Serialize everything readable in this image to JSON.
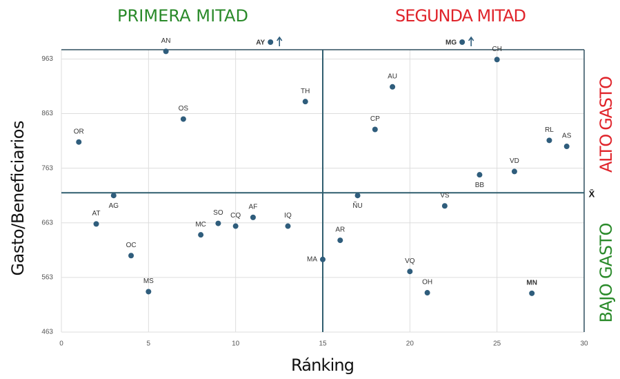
{
  "chart_data": {
    "type": "scatter",
    "xlabel": "Ránking",
    "ylabel": "Gasto/Beneficiarios",
    "xlim": [
      0,
      30
    ],
    "xticks": [
      0,
      5,
      10,
      15,
      20,
      25,
      30
    ],
    "ylim": [
      463,
      980
    ],
    "yticks": [
      463,
      563,
      663,
      763,
      863,
      963
    ],
    "grid": true,
    "color": "#2f5d7c",
    "highlight_color": "#b3282d",
    "labels": [
      "OR",
      "AN",
      "OS",
      "TH",
      "AU",
      "CP",
      "CH",
      "RL",
      "AS",
      "VD",
      "BB",
      "ÑU",
      "AG",
      "AT",
      "VS",
      "MC",
      "SO",
      "CQ",
      "AF",
      "IQ",
      "AR",
      "OC",
      "MA",
      "VQ",
      "MS",
      "OH",
      "MN"
    ],
    "x": [
      1,
      6,
      7,
      14,
      19,
      18,
      25,
      28,
      29,
      26,
      24,
      17,
      3,
      2,
      22,
      8,
      9,
      10,
      11,
      13,
      16,
      4,
      15,
      20,
      5,
      21,
      27
    ],
    "values": [
      811,
      977,
      853,
      885,
      912,
      834,
      962,
      814,
      803,
      757,
      751,
      713,
      713,
      661,
      694,
      641,
      662,
      657,
      673,
      657,
      631,
      603,
      596,
      574,
      537,
      535,
      534
    ],
    "highlighted": [
      26
    ],
    "off_chart": {
      "labels": [
        "AY",
        "MG"
      ],
      "x": [
        12,
        23
      ]
    },
    "mean_line": 718,
    "mean_label": "X̄",
    "mid_line": 15,
    "quadrants": {
      "left": "PRIMERA MITAD",
      "right": "SEGUNDA MITAD",
      "top": "ALTO GASTO",
      "bottom": "BAJO GASTO"
    }
  }
}
